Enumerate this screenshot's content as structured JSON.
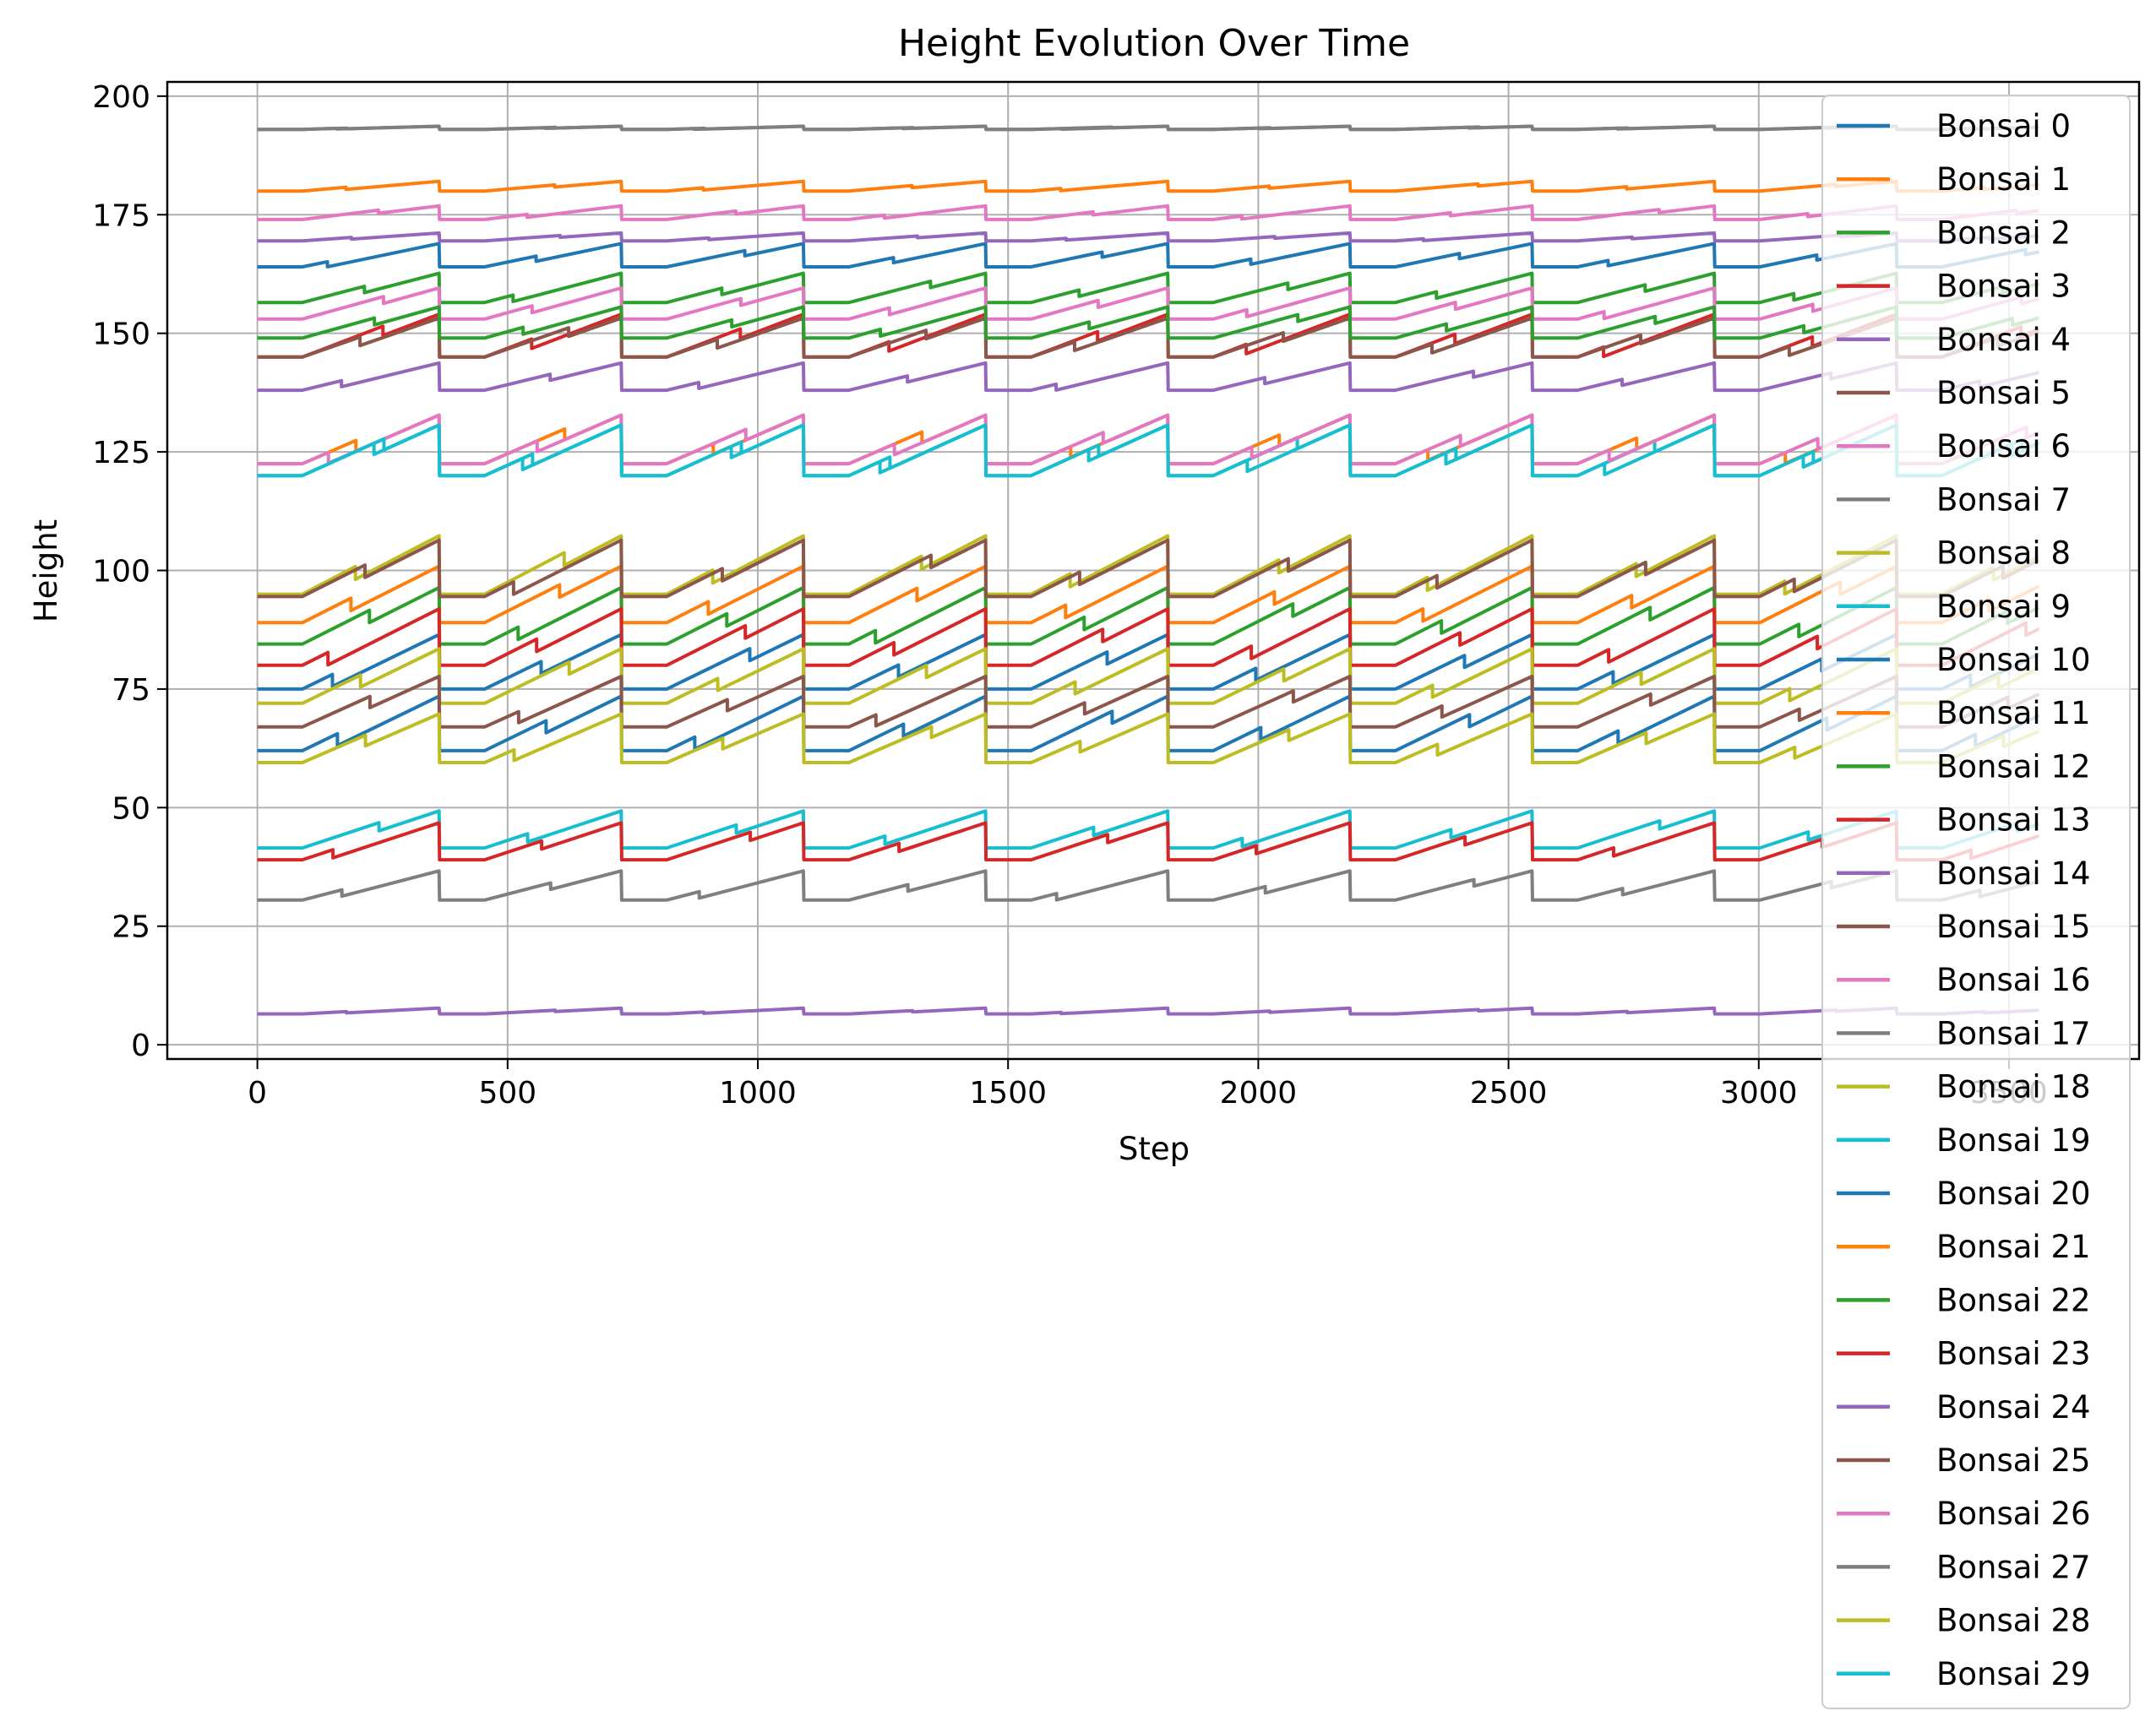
{
  "chart_data": {
    "type": "line",
    "title": "Height Evolution Over Time",
    "xlabel": "Step",
    "ylabel": "Height",
    "xlim": [
      -180,
      3760
    ],
    "ylim": [
      -3,
      203
    ],
    "xticks": [
      0,
      500,
      1000,
      1500,
      2000,
      2500,
      3000,
      3500
    ],
    "yticks": [
      0,
      25,
      50,
      75,
      100,
      125,
      150,
      175,
      200
    ],
    "grid": true,
    "legend_position": "right",
    "cycle": 364,
    "steps": 3560,
    "series": [
      {
        "name": "Bonsai 0",
        "color": "#1f77b4",
        "min": 164,
        "max": 170
      },
      {
        "name": "Bonsai 1",
        "color": "#ff7f0e",
        "min": 180,
        "max": 182.5
      },
      {
        "name": "Bonsai 2",
        "color": "#2ca02c",
        "min": 156.5,
        "max": 164
      },
      {
        "name": "Bonsai 3",
        "color": "#d62728",
        "min": 145,
        "max": 156
      },
      {
        "name": "Bonsai 4",
        "color": "#9467bd",
        "min": 138,
        "max": 145
      },
      {
        "name": "Bonsai 5",
        "color": "#8c564b",
        "min": 145,
        "max": 155
      },
      {
        "name": "Bonsai 6",
        "color": "#e377c2",
        "min": 174,
        "max": 177.5
      },
      {
        "name": "Bonsai 7",
        "color": "#7f7f7f",
        "min": 193,
        "max": 193.8
      },
      {
        "name": "Bonsai 8",
        "color": "#bcbd22",
        "min": 95,
        "max": 110
      },
      {
        "name": "Bonsai 9",
        "color": "#17becf",
        "min": 120,
        "max": 133
      },
      {
        "name": "Bonsai 10",
        "color": "#1f77b4",
        "min": 75,
        "max": 89
      },
      {
        "name": "Bonsai 11",
        "color": "#ff7f0e",
        "min": 89,
        "max": 103.5
      },
      {
        "name": "Bonsai 12",
        "color": "#2ca02c",
        "min": 84.5,
        "max": 99
      },
      {
        "name": "Bonsai 13",
        "color": "#d62728",
        "min": 80,
        "max": 94.5
      },
      {
        "name": "Bonsai 14",
        "color": "#9467bd",
        "min": 6.5,
        "max": 8
      },
      {
        "name": "Bonsai 15",
        "color": "#8c564b",
        "min": 94.5,
        "max": 109
      },
      {
        "name": "Bonsai 16",
        "color": "#e377c2",
        "min": 153,
        "max": 161
      },
      {
        "name": "Bonsai 17",
        "color": "#7f7f7f",
        "min": 30.5,
        "max": 38
      },
      {
        "name": "Bonsai 18",
        "color": "#bcbd22",
        "min": 72,
        "max": 86
      },
      {
        "name": "Bonsai 19",
        "color": "#17becf",
        "min": 41.5,
        "max": 51
      },
      {
        "name": "Bonsai 20",
        "color": "#1f77b4",
        "min": 62,
        "max": 76
      },
      {
        "name": "Bonsai 21",
        "color": "#ff7f0e",
        "min": 122.5,
        "max": 135
      },
      {
        "name": "Bonsai 22",
        "color": "#2ca02c",
        "min": 149,
        "max": 157
      },
      {
        "name": "Bonsai 23",
        "color": "#d62728",
        "min": 39,
        "max": 48.5
      },
      {
        "name": "Bonsai 24",
        "color": "#9467bd",
        "min": 169.5,
        "max": 171.5
      },
      {
        "name": "Bonsai 25",
        "color": "#8c564b",
        "min": 67,
        "max": 80
      },
      {
        "name": "Bonsai 26",
        "color": "#e377c2",
        "min": 122.5,
        "max": 135
      },
      {
        "name": "Bonsai 27",
        "color": "#7f7f7f",
        "min": 193,
        "max": 193.8
      },
      {
        "name": "Bonsai 28",
        "color": "#bcbd22",
        "min": 59.5,
        "max": 72
      },
      {
        "name": "Bonsai 29",
        "color": "#17becf",
        "min": 120,
        "max": 133
      }
    ]
  }
}
